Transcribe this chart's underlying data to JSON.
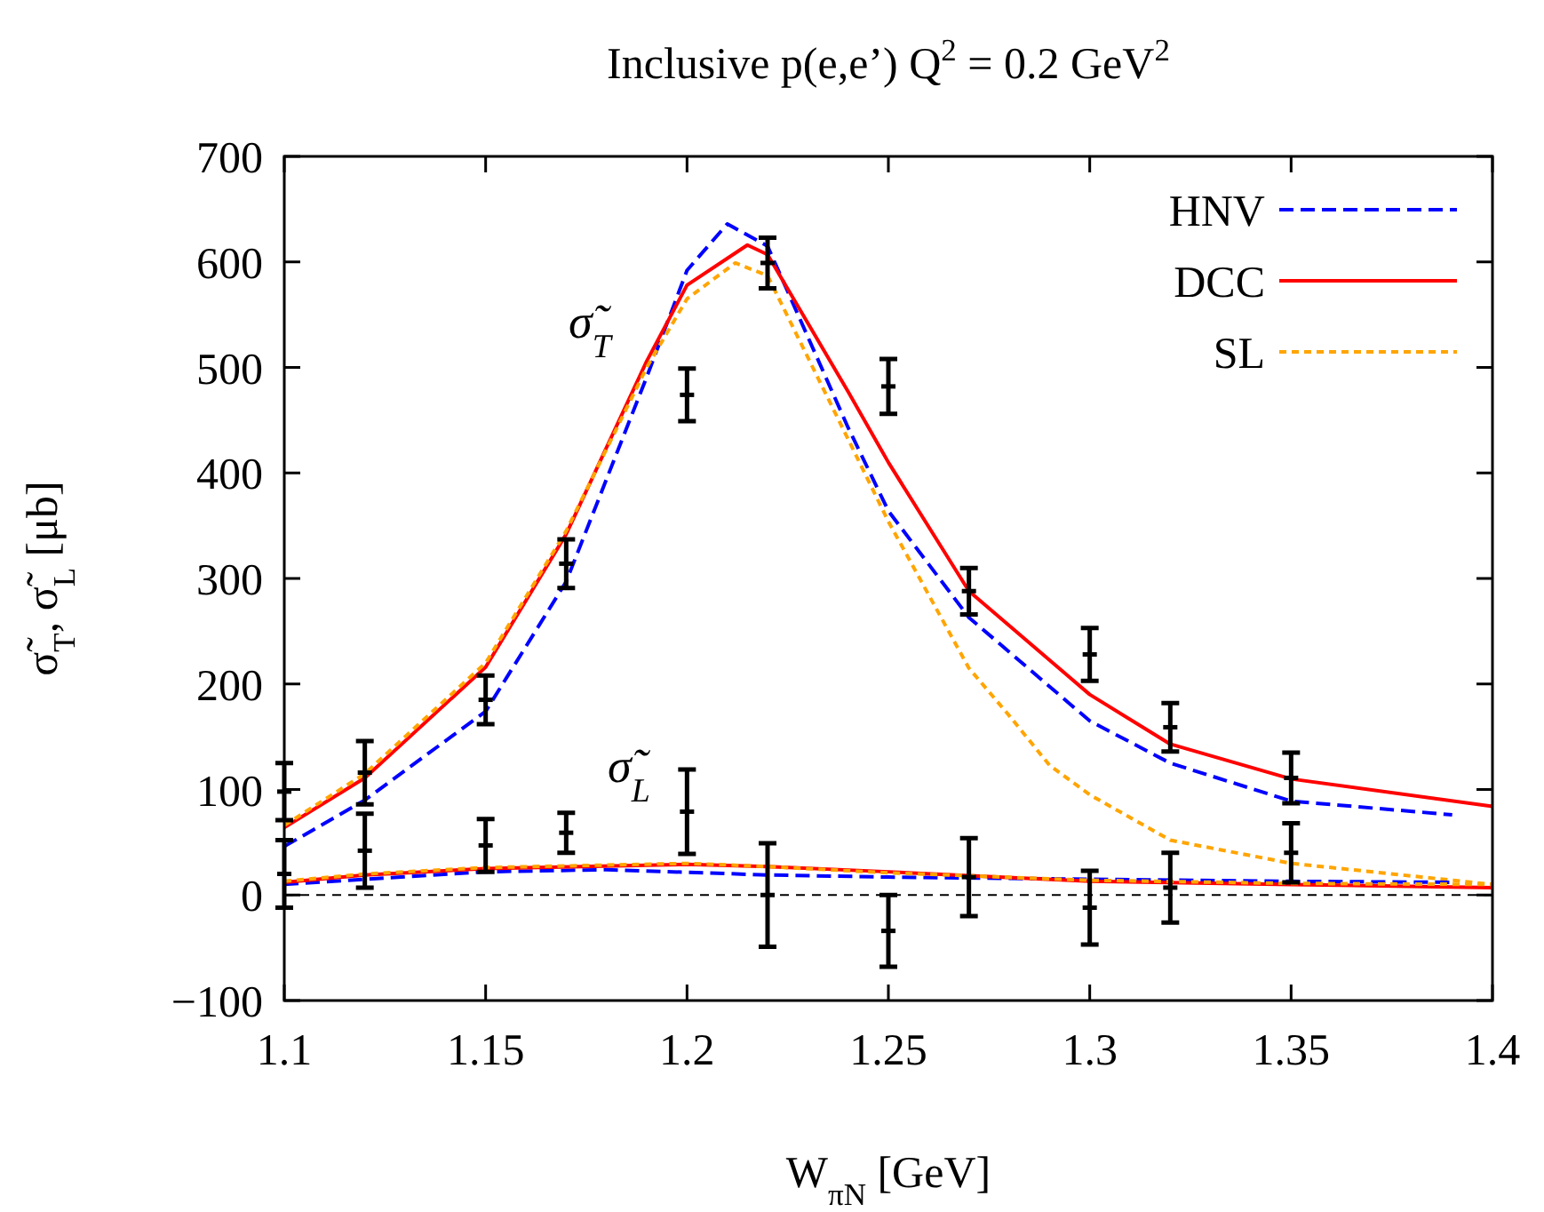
{
  "chart_data": {
    "type": "line",
    "title": "Inclusive p(e,e’) Q$^{2}$ = 0.2 GeV$^{2}$",
    "xlabel": "W$_{πN}$ [GeV]",
    "ylabel": "σ̃$_{T}$, σ̃$_{L}$ [μb]",
    "xlim": [
      1.1,
      1.4
    ],
    "xticks": [
      1.1,
      1.15,
      1.2,
      1.25,
      1.3,
      1.35,
      1.4
    ],
    "ylim": [
      -100,
      700
    ],
    "yticks": [
      {
        "value": -100,
        "label": "−100"
      },
      0,
      100,
      200,
      300,
      400,
      500,
      600,
      700
    ],
    "grid": false,
    "legend": "top right",
    "ref_lines": [
      {
        "axis": "y",
        "value": 0,
        "color": "#000000",
        "line_style": "dashed"
      }
    ],
    "annotations": [
      "σ̃$_{T}$",
      "σ̃$_{L}$"
    ],
    "series": [
      {
        "name": "HNV",
        "color": "#0000ff",
        "line_style": "dashed",
        "x": [
          1.1,
          1.12,
          1.15,
          1.17,
          1.19,
          1.2,
          1.21,
          1.22,
          1.24,
          1.25,
          1.27,
          1.3,
          1.32,
          1.35,
          1.39
        ],
        "values": [
          46,
          90,
          174,
          297,
          491,
          592,
          636,
          615,
          443,
          364,
          263,
          165,
          125,
          89,
          76
        ]
      },
      {
        "name": "DCC",
        "color": "#ff0000",
        "line_style": "solid",
        "x": [
          1.1,
          1.12,
          1.15,
          1.17,
          1.19,
          1.2,
          1.215,
          1.22,
          1.24,
          1.25,
          1.27,
          1.3,
          1.32,
          1.35,
          1.4
        ],
        "values": [
          64,
          111,
          216,
          342,
          506,
          578,
          616,
          607,
          477,
          410,
          288,
          190,
          143,
          110,
          84
        ]
      },
      {
        "name": "SL",
        "color": "#ffa500",
        "line_style": "dotted",
        "x": [
          1.1,
          1.12,
          1.15,
          1.17,
          1.19,
          1.2,
          1.212,
          1.22,
          1.24,
          1.25,
          1.27,
          1.28,
          1.29,
          1.3,
          1.32,
          1.35,
          1.4
        ],
        "values": [
          66,
          115,
          220,
          345,
          500,
          565,
          599,
          587,
          432,
          354,
          215,
          170,
          123,
          95,
          52,
          30,
          10
        ]
      },
      {
        "color": "#0000ff",
        "line_style": "dashed",
        "x": [
          1.1,
          1.15,
          1.18,
          1.22,
          1.25,
          1.3,
          1.35,
          1.39
        ],
        "values": [
          10,
          22,
          24,
          19,
          17,
          15,
          13,
          12
        ]
      },
      {
        "color": "#ff0000",
        "line_style": "solid",
        "x": [
          1.1,
          1.12,
          1.15,
          1.2,
          1.22,
          1.25,
          1.3,
          1.35,
          1.4
        ],
        "values": [
          12,
          19,
          25,
          29,
          27,
          22,
          13,
          10,
          7
        ]
      },
      {
        "color": "#ffa500",
        "line_style": "dotted",
        "x": [
          1.1,
          1.12,
          1.15,
          1.2,
          1.22,
          1.25,
          1.3,
          1.35,
          1.4
        ],
        "values": [
          13,
          20,
          26,
          30,
          27,
          21,
          14,
          11,
          10
        ]
      },
      {
        "type": "scatter",
        "color": "#000000",
        "x": [
          1.1,
          1.12,
          1.15,
          1.17,
          1.2,
          1.22,
          1.25,
          1.27,
          1.3,
          1.32,
          1.35
        ],
        "values": [
          98,
          116,
          185,
          314,
          474,
          599,
          482,
          288,
          228,
          159,
          111
        ],
        "errors": [
          27,
          30,
          23,
          23,
          25,
          24,
          26,
          22,
          25,
          23,
          24
        ]
      },
      {
        "type": "scatter",
        "color": "#000000",
        "x": [
          1.1,
          1.12,
          1.15,
          1.17,
          1.2,
          1.22,
          1.25,
          1.27,
          1.3,
          1.32,
          1.35
        ],
        "values": [
          20,
          42,
          47,
          59,
          79,
          0,
          -34,
          17,
          -12,
          7,
          40
        ],
        "errors": [
          32,
          35,
          25,
          19,
          40,
          49,
          34,
          37,
          35,
          33,
          28
        ]
      }
    ]
  }
}
